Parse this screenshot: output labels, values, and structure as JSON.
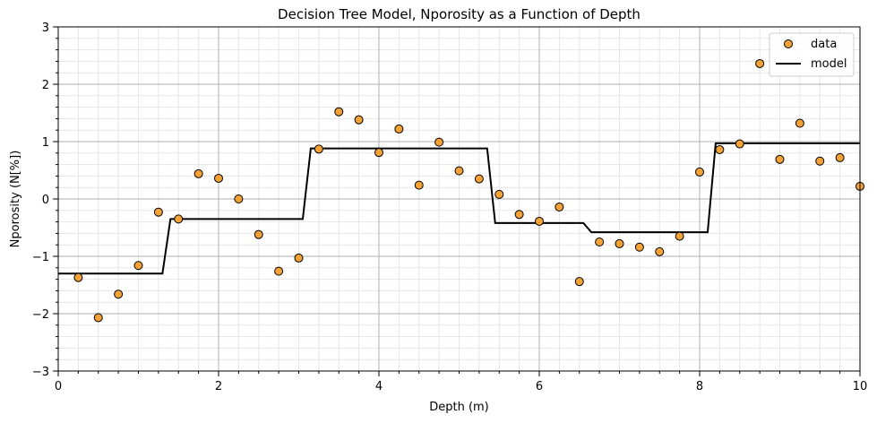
{
  "chart_data": {
    "type": "scatter",
    "title": "Decision Tree Model, Nporosity as a Function of Depth",
    "xlabel": "Depth (m)",
    "ylabel": "Nporosity (N[%])",
    "xlim": [
      0,
      10
    ],
    "ylim": [
      -3,
      3
    ],
    "x_ticks": [
      0,
      2,
      4,
      6,
      8,
      10
    ],
    "x_tick_labels": [
      "0",
      "2",
      "4",
      "6",
      "8",
      "10"
    ],
    "y_ticks": [
      -3,
      -2,
      -1,
      0,
      1,
      2,
      3
    ],
    "y_tick_labels": [
      "−3",
      "−2",
      "−1",
      "0",
      "1",
      "2",
      "3"
    ],
    "grid": true,
    "legend": "top-right",
    "colors": {
      "data": "#f4a236",
      "data_edge": "#000000",
      "model": "#000000",
      "grid_major": "#b0b0b0",
      "grid_minor": "#e6e6e6"
    },
    "series": [
      {
        "name": "data",
        "kind": "scatter",
        "x": [
          0.25,
          0.5,
          0.75,
          1.0,
          1.25,
          1.5,
          1.75,
          2.0,
          2.25,
          2.5,
          2.75,
          3.0,
          3.25,
          3.5,
          3.75,
          4.0,
          4.25,
          4.5,
          4.75,
          5.0,
          5.25,
          5.5,
          5.75,
          6.0,
          6.25,
          6.5,
          6.75,
          7.0,
          7.25,
          7.5,
          7.75,
          8.0,
          8.25,
          8.5,
          8.75,
          9.0,
          9.25,
          9.5,
          9.75,
          10.0
        ],
        "y": [
          -1.37,
          -2.07,
          -1.66,
          -1.16,
          -0.23,
          -0.35,
          0.44,
          0.36,
          0.0,
          -0.62,
          -1.26,
          -1.03,
          0.87,
          1.52,
          1.38,
          0.81,
          1.22,
          0.24,
          0.99,
          0.49,
          0.35,
          0.08,
          -0.27,
          -0.39,
          -0.14,
          -1.44,
          -0.75,
          -0.78,
          -0.84,
          -0.92,
          -0.65,
          0.47,
          0.86,
          0.96,
          2.36,
          0.69,
          1.32,
          0.66,
          0.72,
          0.22
        ]
      },
      {
        "name": "model",
        "kind": "line",
        "x": [
          0.0,
          1.3,
          1.4,
          3.05,
          3.15,
          5.35,
          5.45,
          6.55,
          6.65,
          8.1,
          8.2,
          10.0
        ],
        "y": [
          -1.3,
          -1.3,
          -0.35,
          -0.35,
          0.88,
          0.88,
          -0.42,
          -0.42,
          -0.58,
          -0.58,
          0.97,
          0.97
        ]
      }
    ]
  }
}
